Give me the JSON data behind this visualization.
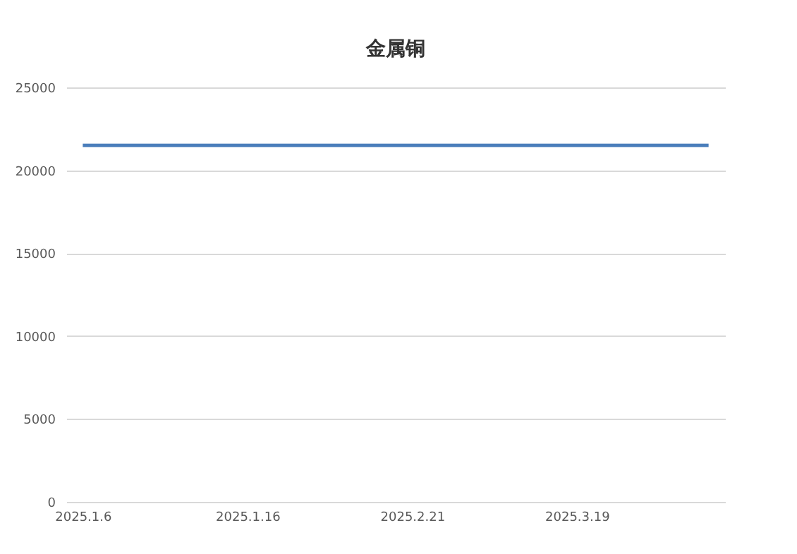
{
  "chart_data": {
    "type": "line",
    "title": "金属铜",
    "categories": [
      "2025.1.6",
      null,
      null,
      null,
      null,
      "2025.1.16",
      null,
      null,
      null,
      null,
      "2025.2.21",
      null,
      null,
      null,
      null,
      "2025.3.19",
      null,
      null,
      null,
      null
    ],
    "series": [
      {
        "color": "#4a7ebb",
        "values": [
          21500,
          21500,
          21500,
          21500,
          21500,
          21500,
          21500,
          21500,
          21500,
          21500,
          21500,
          21500,
          21500,
          21500,
          21500,
          21500,
          21500,
          21500,
          21500,
          21500
        ]
      }
    ],
    "ylim": [
      0,
      25000
    ],
    "yticks": [
      0,
      5000,
      10000,
      15000,
      20000,
      25000
    ],
    "grid": "y",
    "legend": false,
    "marker": "none",
    "line_style": "solid"
  }
}
